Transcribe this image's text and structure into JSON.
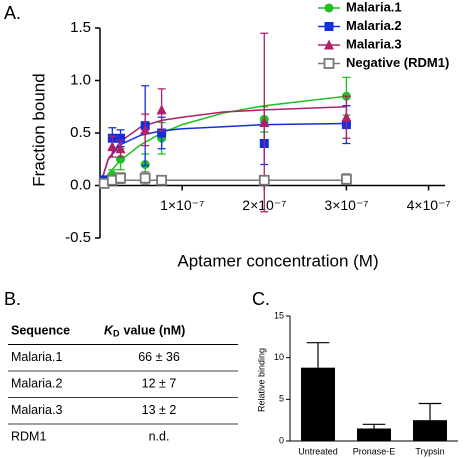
{
  "panel_labels": [
    "A.",
    "B.",
    "C."
  ],
  "chart_data": [
    {
      "type": "scatter",
      "xlabel": "Aptamer concentration (M)",
      "ylabel": "Fraction bound",
      "xlim": [
        0,
        4.2e-07
      ],
      "ylim": [
        -0.5,
        1.5
      ],
      "xticks": [
        {
          "value": 1e-07,
          "label": "1×10⁻⁷"
        },
        {
          "value": 2e-07,
          "label": "2×10⁻⁷"
        },
        {
          "value": 3e-07,
          "label": "3×10⁻⁷"
        },
        {
          "value": 4e-07,
          "label": "4×10⁻⁷"
        }
      ],
      "yticks": [
        -0.5,
        {
          "value": 0,
          "label": "0.0"
        },
        0.5,
        {
          "value": 1,
          "label": "1.0"
        },
        1.5
      ],
      "legend": "top-right",
      "series": [
        {
          "name": "Malaria.1",
          "color": "#1fbf1f",
          "marker": "circle",
          "x": [
            5e-09,
            1.5e-08,
            2.5e-08,
            5.5e-08,
            7.5e-08,
            2e-07,
            3e-07
          ],
          "values": [
            0.03,
            0.1,
            0.25,
            0.2,
            0.45,
            0.63,
            0.85
          ],
          "errors": [
            0.03,
            0.05,
            0.1,
            0.1,
            0.15,
            0.12,
            0.18
          ],
          "fit_x": [
            0,
            1e-08,
            2.5e-08,
            5e-08,
            7.5e-08,
            1e-07,
            1.5e-07,
            2e-07,
            3e-07
          ],
          "fit_values": [
            0,
            0.11,
            0.24,
            0.39,
            0.5,
            0.58,
            0.69,
            0.76,
            0.85
          ]
        },
        {
          "name": "Malaria.2",
          "color": "#1030e0",
          "marker": "square",
          "x": [
            5e-09,
            1.5e-08,
            2.5e-08,
            5.5e-08,
            7.5e-08,
            2e-07,
            3e-07
          ],
          "values": [
            0.05,
            0.45,
            0.45,
            0.57,
            0.5,
            0.4,
            0.58
          ],
          "errors": [
            0.04,
            0.1,
            0.08,
            0.38,
            0.15,
            0.2,
            0.18
          ],
          "fit_x": [
            0,
            1e-08,
            2.5e-08,
            5e-08,
            7.5e-08,
            1e-07,
            1.5e-07,
            2e-07,
            3e-07
          ],
          "fit_values": [
            0,
            0.25,
            0.39,
            0.48,
            0.52,
            0.54,
            0.56,
            0.58,
            0.59
          ]
        },
        {
          "name": "Malaria.3",
          "color": "#b0206a",
          "marker": "triangle",
          "x": [
            1.5e-08,
            2.5e-08,
            5.5e-08,
            7.5e-08,
            2e-07,
            3e-07
          ],
          "values": [
            0.37,
            0.35,
            0.53,
            0.72,
            0.6,
            0.65
          ],
          "errors": [
            0.1,
            0.08,
            0.15,
            0.2,
            0.85,
            0.2
          ],
          "fit_x": [
            0,
            1e-08,
            2.5e-08,
            5e-08,
            7.5e-08,
            1e-07,
            1.5e-07,
            2e-07,
            3e-07
          ],
          "fit_values": [
            0,
            0.25,
            0.42,
            0.56,
            0.62,
            0.65,
            0.7,
            0.72,
            0.75
          ]
        },
        {
          "name": "Negative (RDM1)",
          "color": "#777777",
          "marker": "open-square",
          "x": [
            5e-09,
            1.5e-08,
            2.5e-08,
            5.5e-08,
            7.5e-08,
            2e-07,
            3e-07
          ],
          "values": [
            0.02,
            0.05,
            0.07,
            0.07,
            0.05,
            0.05,
            0.06
          ],
          "errors": [
            0.02,
            0.04,
            0.05,
            0.06,
            0.04,
            0.03,
            0.05
          ],
          "fit_x": [
            0,
            3e-07
          ],
          "fit_values": [
            0.05,
            0.05
          ]
        }
      ]
    },
    {
      "type": "bar",
      "ylabel": "Relative binding",
      "categories": [
        "Untreated",
        "Pronase-E",
        "Trypsin"
      ],
      "values": [
        8.8,
        1.5,
        2.5
      ],
      "errors": [
        3.0,
        0.5,
        2.0
      ],
      "color": "#000000",
      "ylim": [
        0,
        15
      ],
      "yticks": [
        0,
        5,
        10,
        15
      ]
    }
  ],
  "table": {
    "header": [
      "Sequence",
      {
        "symbol": "K",
        "subscript": "D",
        "text": "value (nM)"
      }
    ],
    "rows": [
      [
        "Malaria.1",
        "66 ± 36"
      ],
      [
        "Malaria.2",
        "12 ± 7"
      ],
      [
        "Malaria.3",
        "13 ± 2"
      ],
      [
        "RDM1",
        "n.d."
      ]
    ]
  }
}
